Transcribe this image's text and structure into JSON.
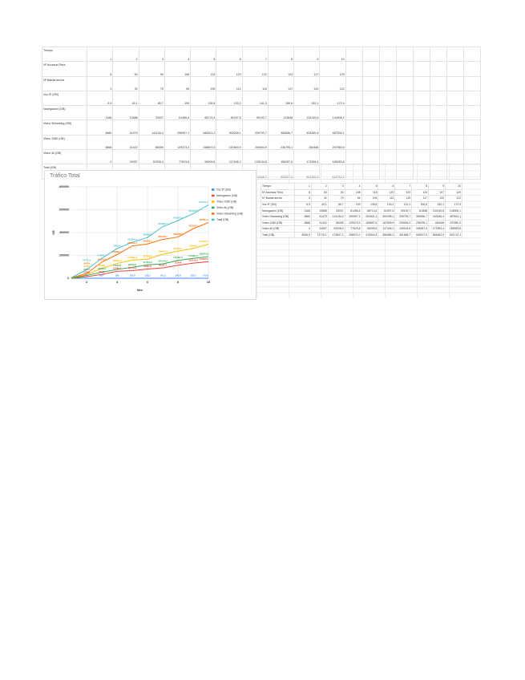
{
  "table": {
    "rows": [
      {
        "label": "Tiempo",
        "values": [
          "1",
          "2",
          "3",
          "4",
          "5",
          "6",
          "7",
          "8",
          "9",
          "10"
        ]
      },
      {
        "label": "Nº Accesos Fibra",
        "values": [
          "8",
          "50",
          "90",
          "108",
          "115",
          "120",
          "122",
          "124",
          "127",
          "129"
        ]
      },
      {
        "label": "Nº Banda ancha",
        "values": [
          "3",
          "32",
          "70",
          "94",
          "105",
          "112",
          "115",
          "117",
          "120",
          "122"
        ]
      },
      {
        "label": "Voz IP (GB)",
        "values": [
          "6,9",
          "49,1",
          "85,7",
          "109",
          "135,8",
          "133,2",
          "141,3",
          "150,8",
          "152,1",
          "172,9"
        ]
      },
      {
        "label": "Navegación (GB)",
        "values": [
          "1166",
          "13588",
          "33037",
          "61456,4",
          "66713,4",
          "81097,6",
          "90192,7",
          "112848",
          "132149,8",
          "144906,1"
        ]
      },
      {
        "label": "Video Streaming (GB)",
        "values": [
          "4860",
          "41479",
          "141134,4",
          "206997,1",
          "282621,2",
          "300298,1",
          "339793,7",
          "360836,7",
          "433345,4",
          "487534,1"
        ]
      },
      {
        "label": "Video 1080 (GB)",
        "values": [
          "4868",
          "31422",
          "86059",
          "129373,3",
          "158597,6",
          "167849,9",
          "209404,9",
          "236795,1",
          "260446",
          "297950,5"
        ]
      },
      {
        "label": "Video 4k (GB)",
        "values": [
          "0",
          "24057",
          "52928,4",
          "77623,8",
          "96009,6",
          "117406,2",
          "125144,8",
          "156287,6",
          "173394,4",
          "189053,8"
        ]
      },
      {
        "label": "Total (GB)",
        "values": [
          "5946,9",
          "74775,1",
          "174547,1",
          "258971,0",
          "315504,4",
          "356466,3",
          "451665,7",
          "505207,6",
          "564452,9",
          "641712,1"
        ]
      }
    ]
  },
  "chart_data": {
    "type": "line",
    "title": "Tráfico Total",
    "xlabel": "Mes",
    "ylabel": "GB",
    "x": [
      1,
      2,
      3,
      4,
      5,
      6,
      7,
      8,
      9,
      10
    ],
    "xticks": [
      "2",
      "4",
      "6",
      "8",
      "10"
    ],
    "yticks": [
      "0",
      "200000",
      "400000",
      "600000",
      "800000"
    ],
    "ylim": [
      0,
      800000
    ],
    "grid": true,
    "legend": "right",
    "series": [
      {
        "name": "Voz IP (GB)",
        "color": "#4285f4",
        "values": [
          6.9,
          49.1,
          85.7,
          109,
          135.8,
          133.2,
          141.3,
          150.8,
          152.1,
          172.9
        ]
      },
      {
        "name": "Navegación (GB)",
        "color": "#ea4335",
        "values": [
          1166,
          13588,
          33037,
          61456.4,
          66713.4,
          81097.6,
          90192.7,
          112848,
          132149.8,
          144906.1
        ]
      },
      {
        "name": "Video 1080 (GB)",
        "color": "#fbbc04",
        "values": [
          4868,
          31422,
          86059,
          129373.3,
          158597.6,
          167849.9,
          209404.9,
          236795.1,
          260446,
          297950.5
        ]
      },
      {
        "name": "Video 4k (GB)",
        "color": "#34a853",
        "values": [
          0,
          24057,
          52928.4,
          77623.8,
          96009.6,
          117406.2,
          125144.8,
          156287.6,
          173394.4,
          189053.8
        ]
      },
      {
        "name": "Video Streaming (GB)",
        "color": "#ff6d01",
        "values": [
          4860,
          41479,
          141134.4,
          206997.1,
          282621.2,
          300298.1,
          339793.7,
          360836.7,
          433345.4,
          487534.1
        ]
      },
      {
        "name": "Total (GB)",
        "color": "#46bdc6",
        "values": [
          5946.9,
          74775.1,
          174547.1,
          258971.0,
          315504.4,
          356466.3,
          451665.7,
          505207.6,
          564452.9,
          641712.1
        ]
      }
    ]
  }
}
